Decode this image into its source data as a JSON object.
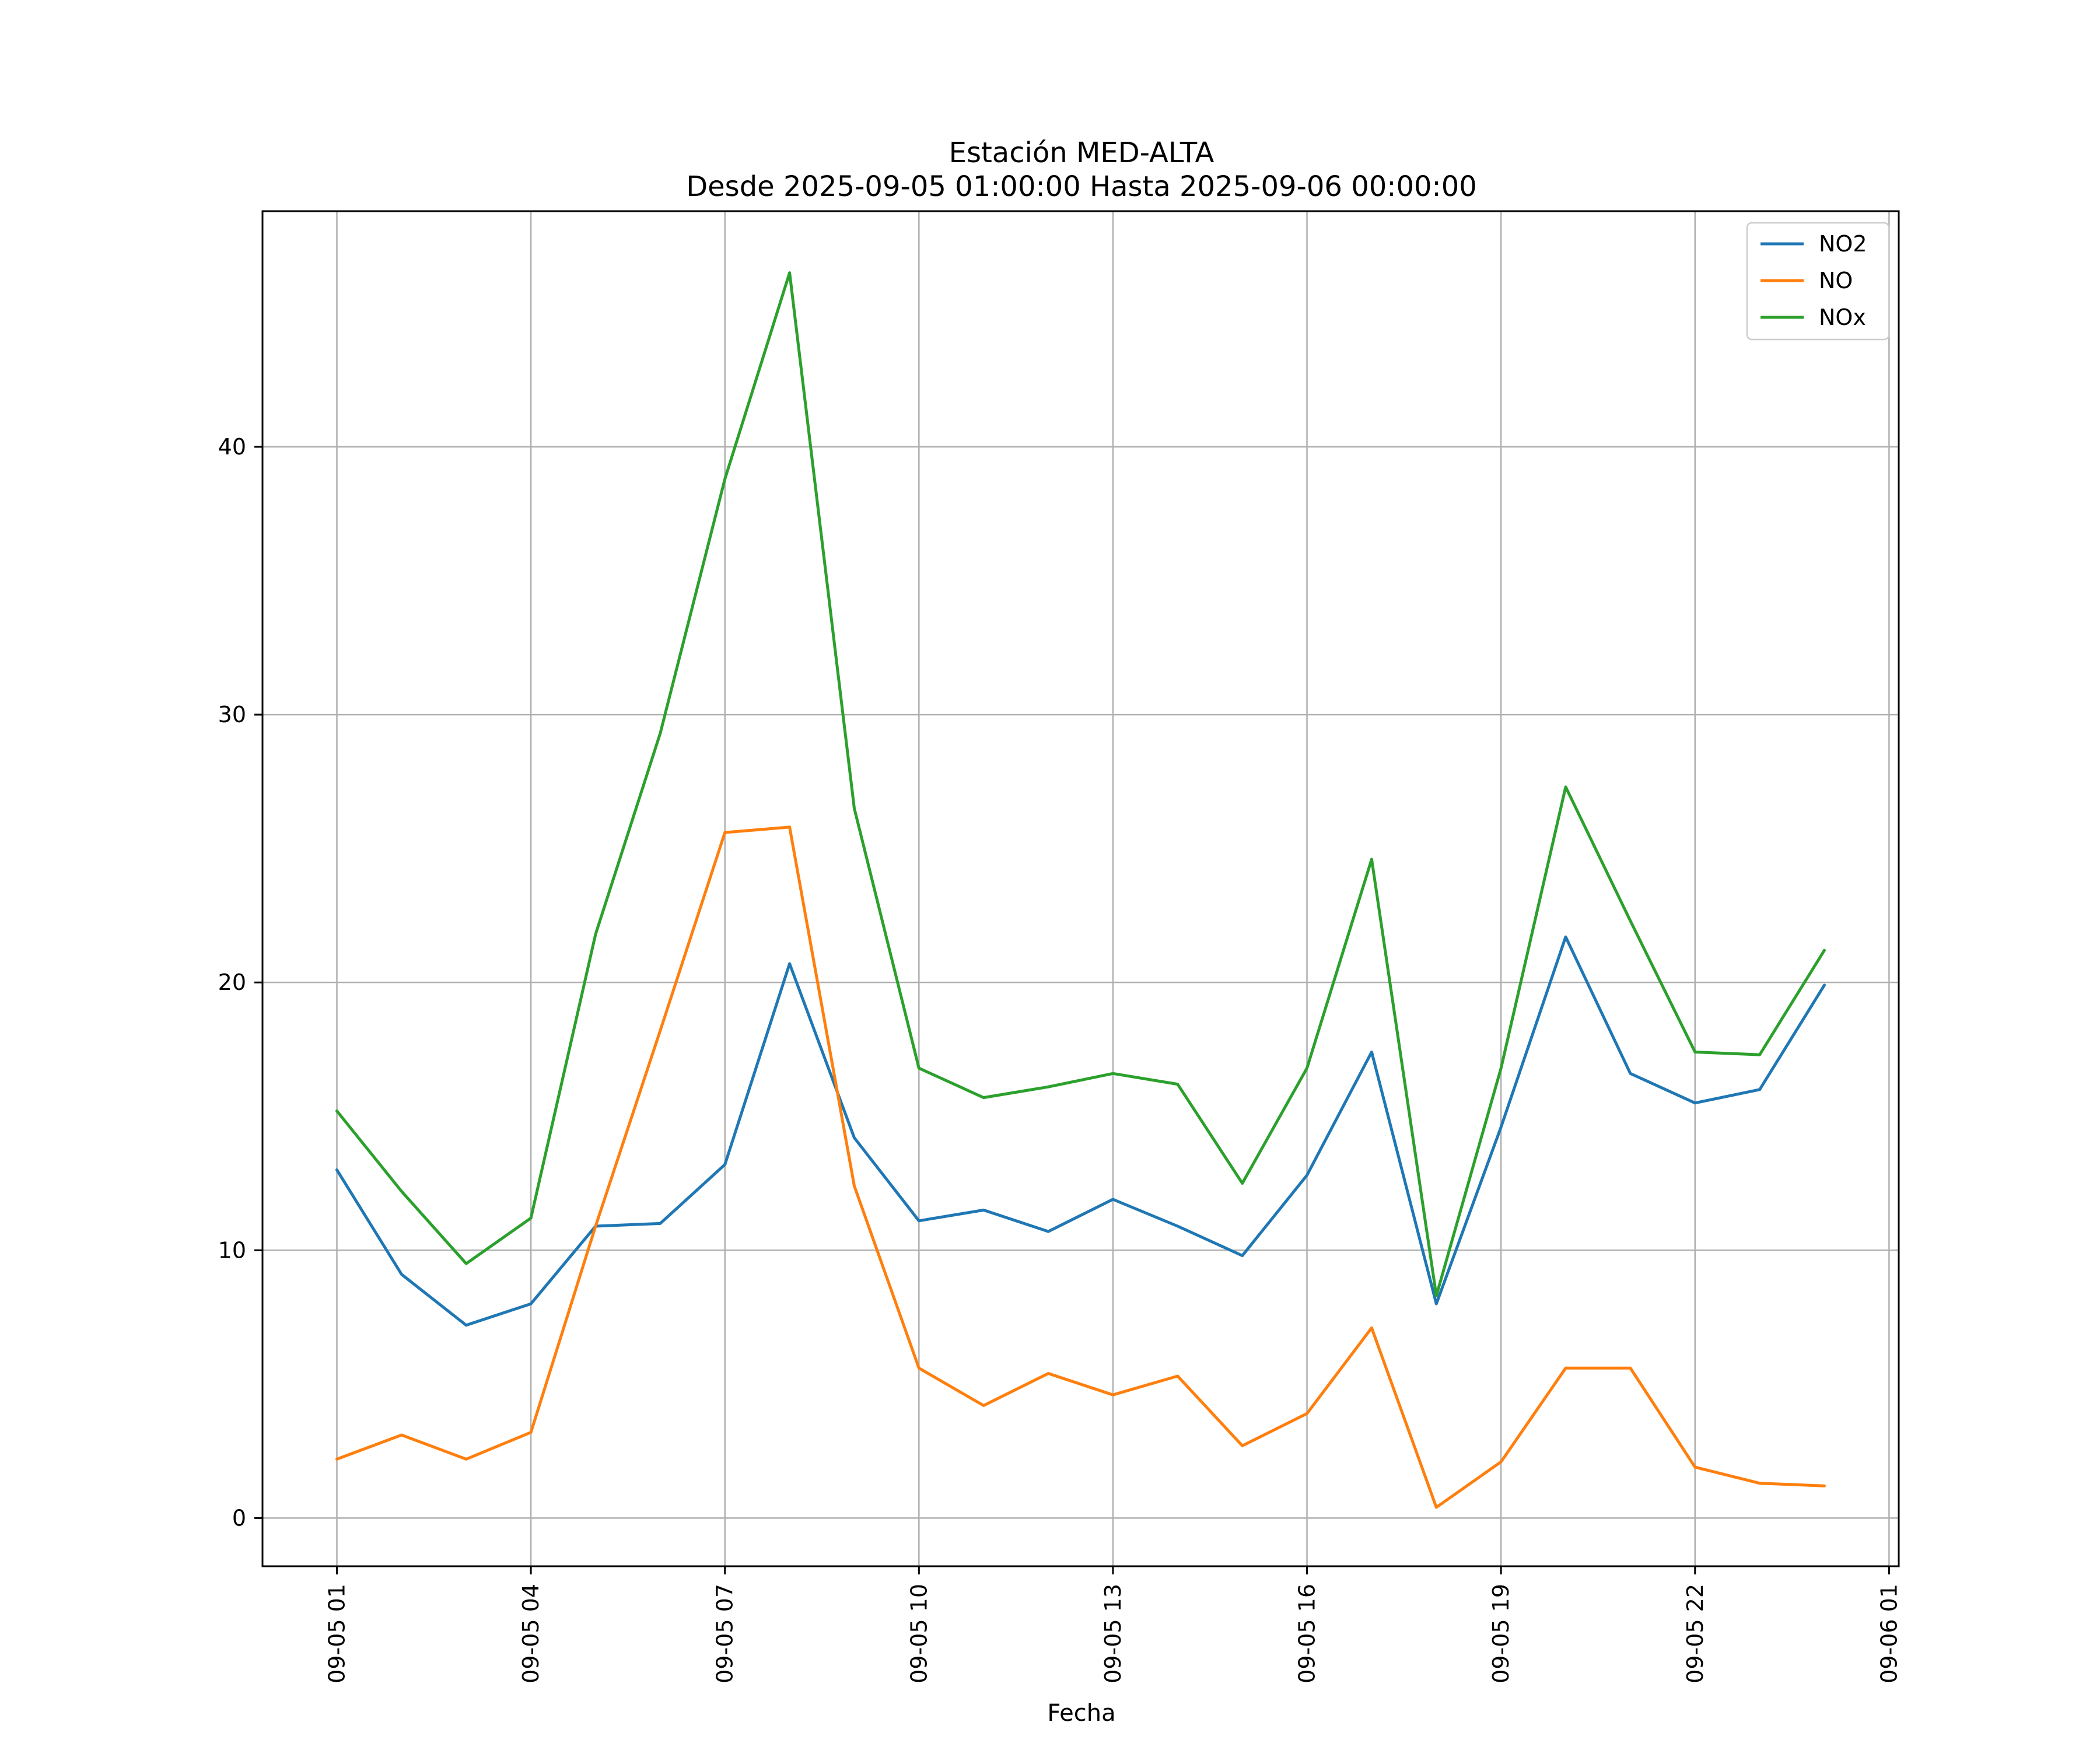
{
  "chart_data": {
    "type": "line",
    "title": "Estación MED-ALTA",
    "subtitle": "Desde 2025-09-05 01:00:00 Hasta 2025-09-06 00:00:00",
    "xlabel": "Fecha",
    "ylabel": "",
    "x": [
      "09-05 01",
      "09-05 02",
      "09-05 03",
      "09-05 04",
      "09-05 05",
      "09-05 06",
      "09-05 07",
      "09-05 08",
      "09-05 09",
      "09-05 10",
      "09-05 11",
      "09-05 12",
      "09-05 13",
      "09-05 14",
      "09-05 15",
      "09-05 16",
      "09-05 17",
      "09-05 18",
      "09-05 19",
      "09-05 20",
      "09-05 21",
      "09-05 22",
      "09-05 23",
      "09-06 00"
    ],
    "x_hours": [
      0,
      1,
      2,
      3,
      4,
      5,
      6,
      7,
      8,
      9,
      10,
      11,
      12,
      13,
      14,
      15,
      16,
      17,
      18,
      19,
      20,
      21,
      22,
      23
    ],
    "xticks": [
      {
        "label": "09-05 01",
        "hour": 0
      },
      {
        "label": "09-05 04",
        "hour": 3
      },
      {
        "label": "09-05 07",
        "hour": 6
      },
      {
        "label": "09-05 10",
        "hour": 9
      },
      {
        "label": "09-05 13",
        "hour": 12
      },
      {
        "label": "09-05 16",
        "hour": 15
      },
      {
        "label": "09-05 19",
        "hour": 18
      },
      {
        "label": "09-05 22",
        "hour": 21
      },
      {
        "label": "09-06 01",
        "hour": 24
      }
    ],
    "xlim": [
      -1.15,
      24.15
    ],
    "yticks": [
      0,
      10,
      20,
      30,
      40
    ],
    "ylim": [
      -1.8,
      48.8
    ],
    "grid": true,
    "legend": "top-right",
    "series": [
      {
        "name": "NO2",
        "color": "#1f77b4",
        "values": [
          13.0,
          9.1,
          7.2,
          8.0,
          10.9,
          11.0,
          13.2,
          20.7,
          14.2,
          11.1,
          11.5,
          10.7,
          11.9,
          10.9,
          9.8,
          12.8,
          17.4,
          8.0,
          14.6,
          21.7,
          16.6,
          15.5,
          16.0,
          19.9
        ]
      },
      {
        "name": "NO",
        "color": "#ff7f0e",
        "values": [
          2.2,
          3.1,
          2.2,
          3.2,
          10.9,
          18.2,
          25.6,
          25.8,
          12.4,
          5.6,
          4.2,
          5.4,
          4.6,
          5.3,
          2.7,
          3.9,
          7.1,
          0.4,
          2.1,
          5.6,
          5.6,
          1.9,
          1.3,
          1.2
        ]
      },
      {
        "name": "NOx",
        "color": "#2ca02c",
        "values": [
          15.2,
          12.2,
          9.5,
          11.2,
          21.8,
          29.3,
          38.8,
          46.5,
          26.5,
          16.8,
          15.7,
          16.1,
          16.6,
          16.2,
          12.5,
          16.8,
          24.6,
          8.3,
          16.8,
          27.3,
          22.3,
          17.4,
          17.3,
          21.2
        ]
      }
    ]
  }
}
